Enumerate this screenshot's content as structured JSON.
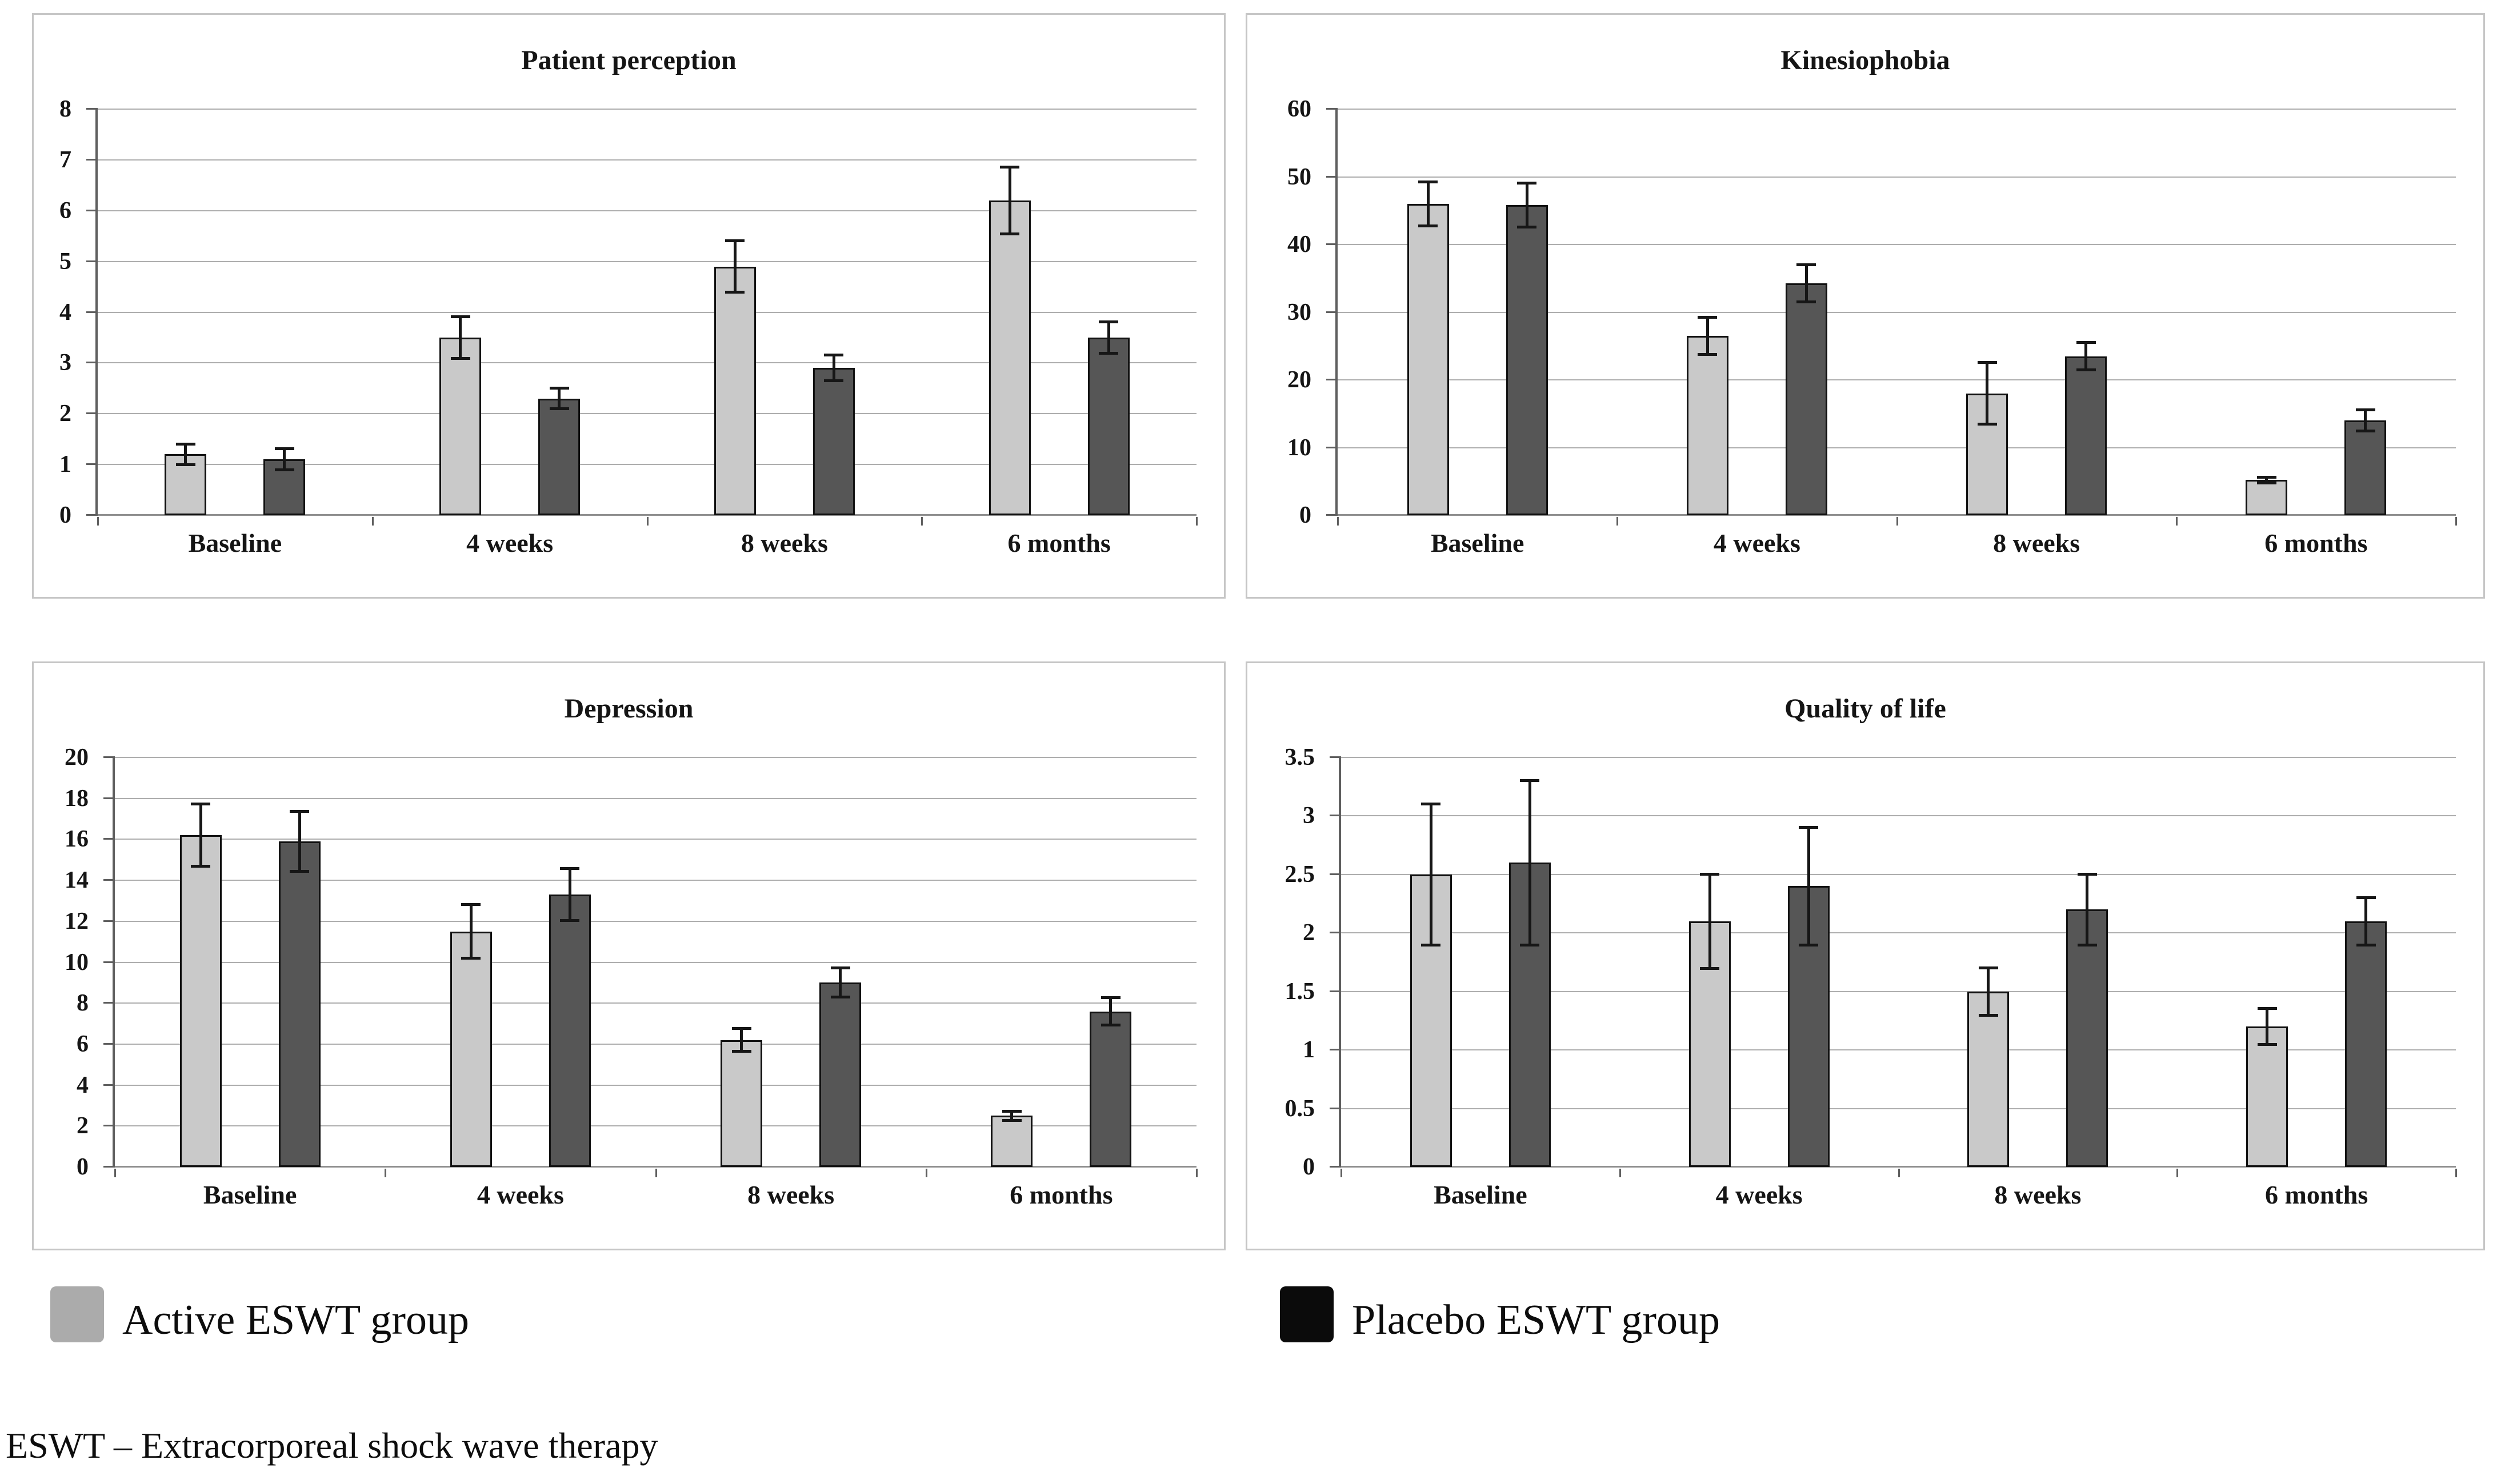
{
  "figure": {
    "background": "#ffffff",
    "text_color": "#151515"
  },
  "legend": {
    "items": [
      {
        "label": "Active ESWT group",
        "color": "#ababab"
      },
      {
        "label": "Placebo ESWT group",
        "color": "#0b0b0b"
      }
    ]
  },
  "footnote": "ESWT – Extracorporeal shock wave therapy",
  "chart_data": [
    {
      "type": "bar",
      "title": "Patient perception",
      "categories": [
        "Baseline",
        "4 weeks",
        "8 weeks",
        "6 months"
      ],
      "ylim": [
        0,
        8
      ],
      "yticks": [
        0,
        1,
        2,
        3,
        4,
        5,
        6,
        7,
        8
      ],
      "ytick_labels": [
        "0",
        "1",
        "2",
        "3",
        "4",
        "5",
        "6",
        "7",
        "8"
      ],
      "grid": true,
      "error_bars": true,
      "series": [
        {
          "name": "Active ESWT group",
          "color": "#c9c9c9",
          "values": [
            1.2,
            3.5,
            4.9,
            6.2
          ],
          "errors": [
            0.2,
            0.4,
            0.5,
            0.65
          ]
        },
        {
          "name": "Placebo ESWT group",
          "color": "#565656",
          "values": [
            1.1,
            2.3,
            2.9,
            3.5
          ],
          "errors": [
            0.2,
            0.2,
            0.25,
            0.3
          ]
        }
      ]
    },
    {
      "type": "bar",
      "title": "Kinesiophobia",
      "categories": [
        "Baseline",
        "4 weeks",
        "8 weeks",
        "6 months"
      ],
      "ylim": [
        0,
        60
      ],
      "yticks": [
        0,
        10,
        20,
        30,
        40,
        50,
        60
      ],
      "ytick_labels": [
        "0",
        "10",
        "20",
        "30",
        "40",
        "50",
        "60"
      ],
      "grid": true,
      "error_bars": true,
      "series": [
        {
          "name": "Active ESWT group",
          "color": "#c9c9c9",
          "values": [
            46,
            26.5,
            18,
            5.2
          ],
          "errors": [
            3.2,
            2.7,
            4.5,
            0.4
          ]
        },
        {
          "name": "Placebo ESWT group",
          "color": "#565656",
          "values": [
            45.8,
            34.3,
            23.5,
            14
          ],
          "errors": [
            3.2,
            2.7,
            2.0,
            1.5
          ]
        }
      ]
    },
    {
      "type": "bar",
      "title": "Depression",
      "categories": [
        "Baseline",
        "4 weeks",
        "8 weeks",
        "6 months"
      ],
      "ylim": [
        0,
        20
      ],
      "yticks": [
        0,
        2,
        4,
        6,
        8,
        10,
        12,
        14,
        16,
        18,
        20
      ],
      "ytick_labels": [
        "0",
        "2",
        "4",
        "6",
        "8",
        "10",
        "12",
        "14",
        "16",
        "18",
        "20"
      ],
      "grid": true,
      "error_bars": true,
      "series": [
        {
          "name": "Active ESWT group",
          "color": "#c9c9c9",
          "values": [
            16.2,
            11.5,
            6.2,
            2.5
          ],
          "errors": [
            1.5,
            1.3,
            0.55,
            0.2
          ]
        },
        {
          "name": "Placebo ESWT group",
          "color": "#565656",
          "values": [
            15.9,
            13.3,
            9.0,
            7.6
          ],
          "errors": [
            1.45,
            1.25,
            0.7,
            0.65
          ]
        }
      ]
    },
    {
      "type": "bar",
      "title": "Quality of life",
      "categories": [
        "Baseline",
        "4 weeks",
        "8 weeks",
        "6 months"
      ],
      "ylim": [
        0,
        3.5
      ],
      "yticks": [
        0,
        0.5,
        1,
        1.5,
        2,
        2.5,
        3,
        3.5
      ],
      "ytick_labels": [
        "0",
        "0.5",
        "1",
        "1.5",
        "2",
        "2.5",
        "3",
        "3.5"
      ],
      "grid": true,
      "error_bars": true,
      "series": [
        {
          "name": "Active ESWT group",
          "color": "#c9c9c9",
          "values": [
            2.5,
            2.1,
            1.5,
            1.2
          ],
          "errors": [
            0.6,
            0.4,
            0.2,
            0.15
          ]
        },
        {
          "name": "Placebo ESWT group",
          "color": "#565656",
          "values": [
            2.6,
            2.4,
            2.2,
            2.1
          ],
          "errors": [
            0.7,
            0.5,
            0.3,
            0.2
          ]
        }
      ]
    }
  ]
}
